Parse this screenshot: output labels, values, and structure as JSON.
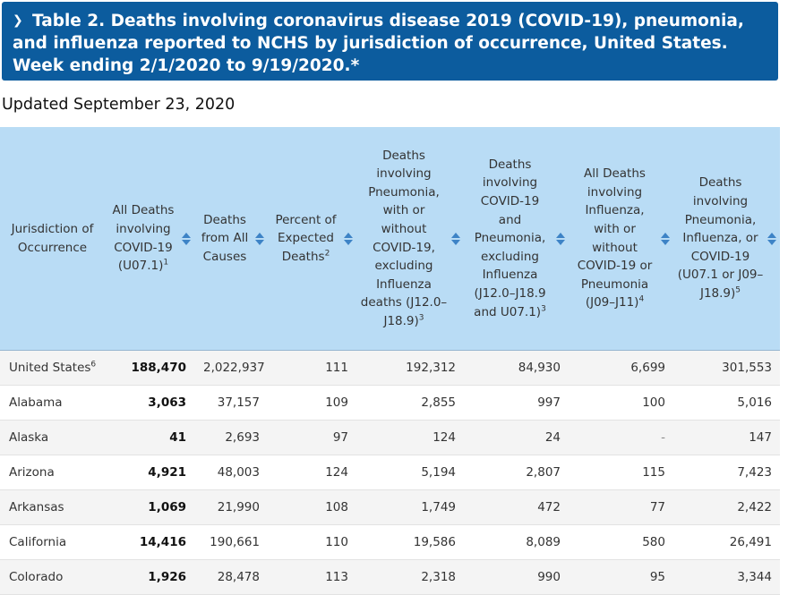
{
  "banner": {
    "title": "Table 2. Deaths involving coronavirus disease 2019 (COVID-19), pneumonia, and influenza reported to NCHS by jurisdiction of occurrence, United States. Week ending 2/1/2020 to 9/19/2020.*"
  },
  "updated": "Updated September 23, 2020",
  "colors": {
    "banner": "#0c5c9e",
    "header_bg": "#b9dcf5",
    "sort_icon": "#3d83c6"
  },
  "table": {
    "headers": [
      {
        "text": "Jurisdiction of Occurrence",
        "sup": ""
      },
      {
        "text": "All Deaths involving COVID-19 (U07.1)",
        "sup": "1"
      },
      {
        "text": "Deaths from All Causes",
        "sup": ""
      },
      {
        "text": "Percent of Expected Deaths",
        "sup": "2"
      },
      {
        "text": "Deaths involving Pneumonia, with or without COVID-19, excluding Influenza deaths (J12.0–J18.9)",
        "sup": "3"
      },
      {
        "text": "Deaths involving COVID-19 and Pneumonia, excluding Influenza (J12.0–J18.9 and U07.1)",
        "sup": "3"
      },
      {
        "text": "All Deaths involving Influenza, with or without COVID-19 or Pneumonia (J09–J11)",
        "sup": "4"
      },
      {
        "text": "Deaths involving Pneumonia, Influenza, or COVID-19 (U07.1 or J09–J18.9)",
        "sup": "5"
      }
    ],
    "rows": [
      {
        "jurisdiction": "United States",
        "sup": "6",
        "values": [
          "188,470",
          "2,022,937",
          "111",
          "192,312",
          "84,930",
          "6,699",
          "301,553"
        ]
      },
      {
        "jurisdiction": "Alabama",
        "sup": "",
        "values": [
          "3,063",
          "37,157",
          "109",
          "2,855",
          "997",
          "100",
          "5,016"
        ]
      },
      {
        "jurisdiction": "Alaska",
        "sup": "",
        "values": [
          "41",
          "2,693",
          "97",
          "124",
          "24",
          "-",
          "147"
        ]
      },
      {
        "jurisdiction": "Arizona",
        "sup": "",
        "values": [
          "4,921",
          "48,003",
          "124",
          "5,194",
          "2,807",
          "115",
          "7,423"
        ]
      },
      {
        "jurisdiction": "Arkansas",
        "sup": "",
        "values": [
          "1,069",
          "21,990",
          "108",
          "1,749",
          "472",
          "77",
          "2,422"
        ]
      },
      {
        "jurisdiction": "California",
        "sup": "",
        "values": [
          "14,416",
          "190,661",
          "110",
          "19,586",
          "8,089",
          "580",
          "26,491"
        ]
      },
      {
        "jurisdiction": "Colorado",
        "sup": "",
        "values": [
          "1,926",
          "28,478",
          "113",
          "2,318",
          "990",
          "95",
          "3,344"
        ]
      }
    ]
  }
}
